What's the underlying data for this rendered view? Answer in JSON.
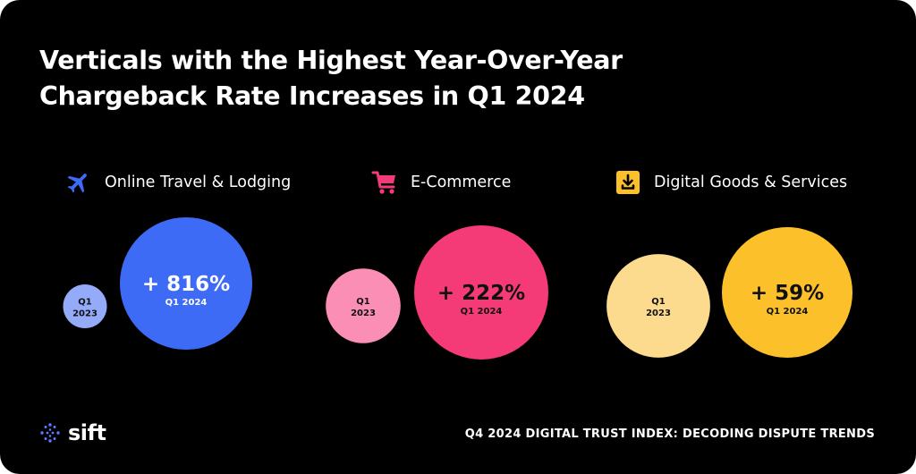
{
  "title_lines": [
    "Verticals with the Highest Year-Over-Year",
    "Chargeback Rate Increases in Q1 2024"
  ],
  "categories": [
    {
      "label": "Online Travel & Lodging",
      "icon": "airplane-icon",
      "color": "#3D6BF5",
      "light_color": "#94ABFA"
    },
    {
      "label": "E-Commerce",
      "icon": "shopping-cart-icon",
      "color": "#F53A78",
      "light_color": "#FA8EB5"
    },
    {
      "label": "Digital Goods & Services",
      "icon": "download-icon",
      "color": "#FCC02A",
      "light_color": "#FCDB8E"
    }
  ],
  "chart_data": {
    "type": "bubble",
    "title": "Verticals with the Highest Year-Over-Year Chargeback Rate Increases in Q1 2024",
    "categories": [
      "Online Travel & Lodging",
      "E-Commerce",
      "Digital Goods & Services"
    ],
    "series": [
      {
        "name": "Q1 2023",
        "label_lines": [
          "Q1",
          "2023"
        ]
      },
      {
        "name": "Q1 2024",
        "label": "Q1 2024"
      }
    ],
    "increase_labels": [
      "+ 816%",
      "+ 222%",
      "+ 59%"
    ],
    "increase_percent": [
      816,
      222,
      59
    ]
  },
  "logo": {
    "text": "sift",
    "icon": "sift-dots-icon"
  },
  "footer": "Q4 2024 DIGITAL TRUST INDEX: DECODING DISPUTE TRENDS"
}
